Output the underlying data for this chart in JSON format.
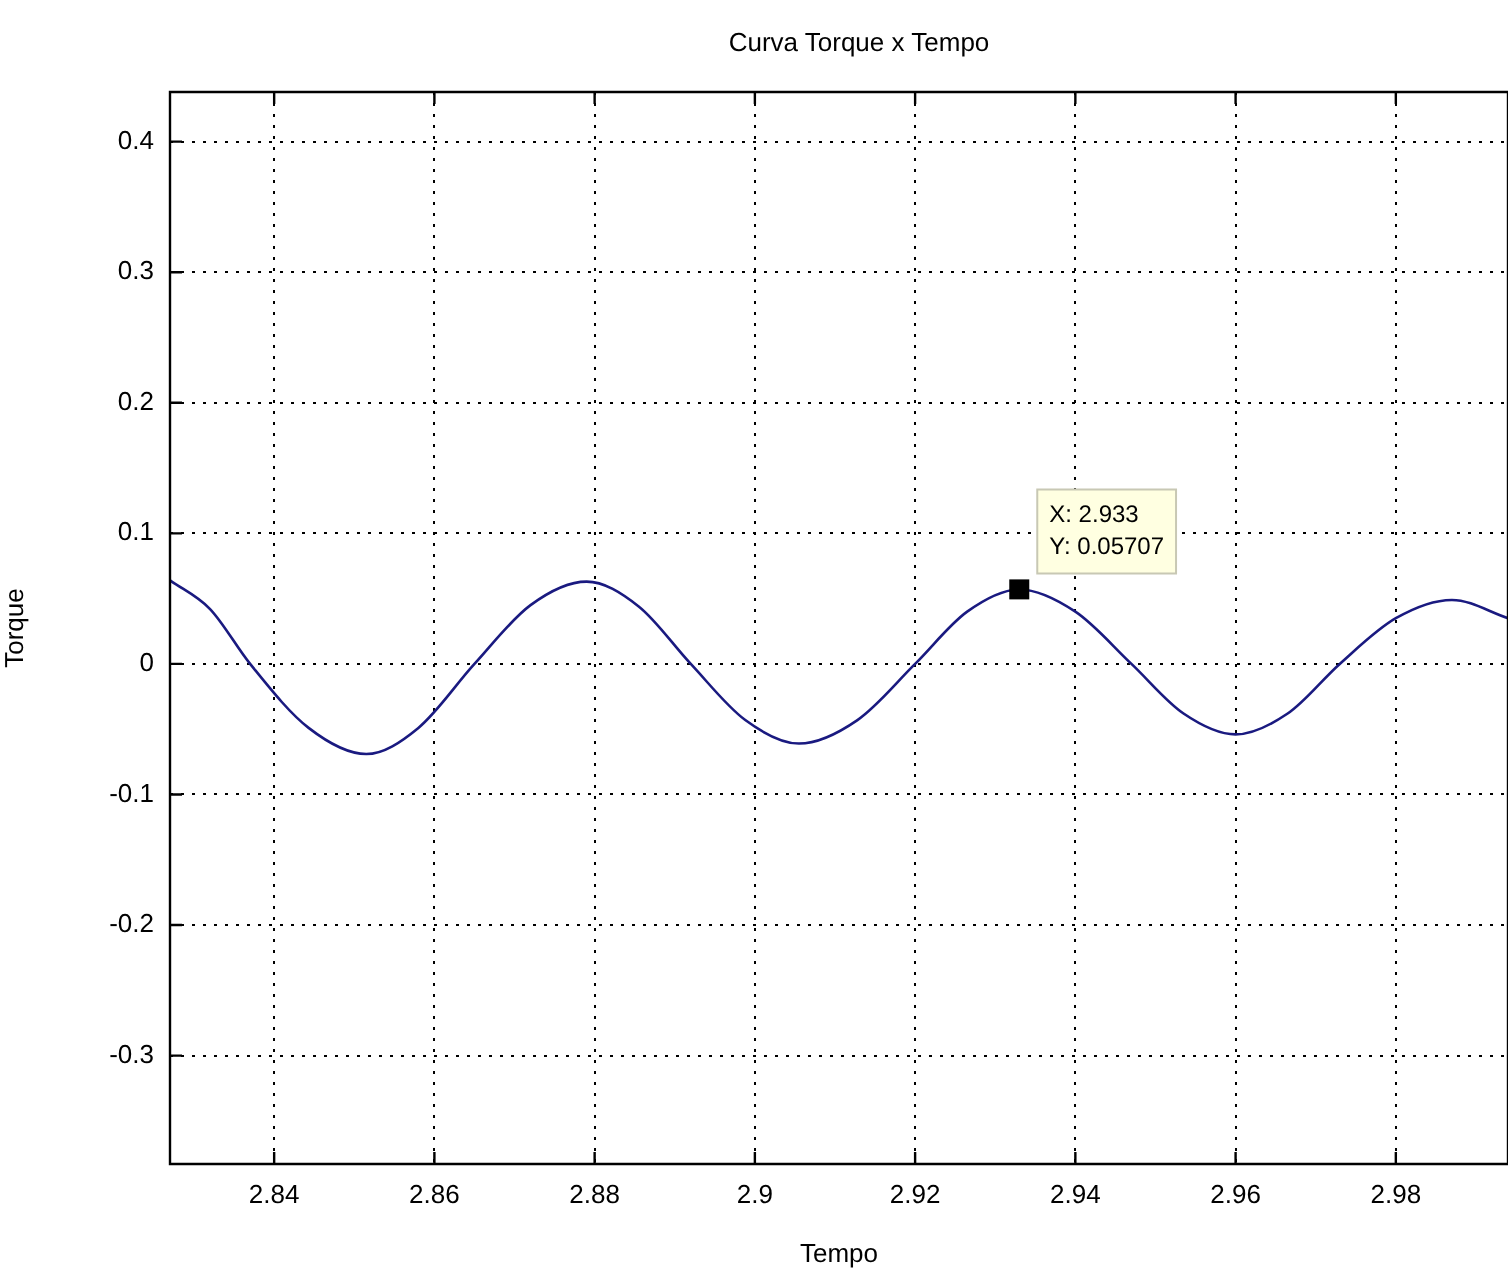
{
  "chart_data": {
    "type": "line",
    "title": "Curva Torque x Tempo",
    "xlabel": "Tempo",
    "ylabel": "Torque",
    "x": [
      2.827,
      2.832,
      2.837,
      2.8443,
      2.8515,
      2.858,
      2.865,
      2.872,
      2.879,
      2.8855,
      2.892,
      2.8988,
      2.9055,
      2.9128,
      2.92,
      2.9265,
      2.933,
      2.94,
      2.947,
      2.9535,
      2.96,
      2.9665,
      2.973,
      2.98,
      2.987,
      2.994
    ],
    "series": [
      {
        "color": "#1a1a80",
        "values": [
          0.064,
          0.042,
          0,
          -0.049,
          -0.069,
          -0.049,
          0,
          0.045,
          0.063,
          0.044,
          0,
          -0.043,
          -0.061,
          -0.043,
          0,
          0.04,
          0.057,
          0.04,
          0,
          -0.038,
          -0.054,
          -0.038,
          0,
          0.035,
          0.049,
          0.035
        ]
      }
    ],
    "annotations": [
      {
        "text": "X: 2.933\nY: 0.05707",
        "x": 2.933,
        "y": 0.05707
      }
    ],
    "xlim": [
      2.827,
      2.994
    ],
    "xticks": [
      2.84,
      2.86,
      2.88,
      2.9,
      2.92,
      2.94,
      2.96,
      2.98
    ],
    "ylim": [
      -0.383,
      0.438
    ],
    "yticks": [
      -0.3,
      -0.2,
      -0.1,
      0,
      0.1,
      0.2,
      0.3,
      0.4
    ],
    "grid": true,
    "legend": false,
    "marker": "none",
    "line_style": "solid"
  }
}
